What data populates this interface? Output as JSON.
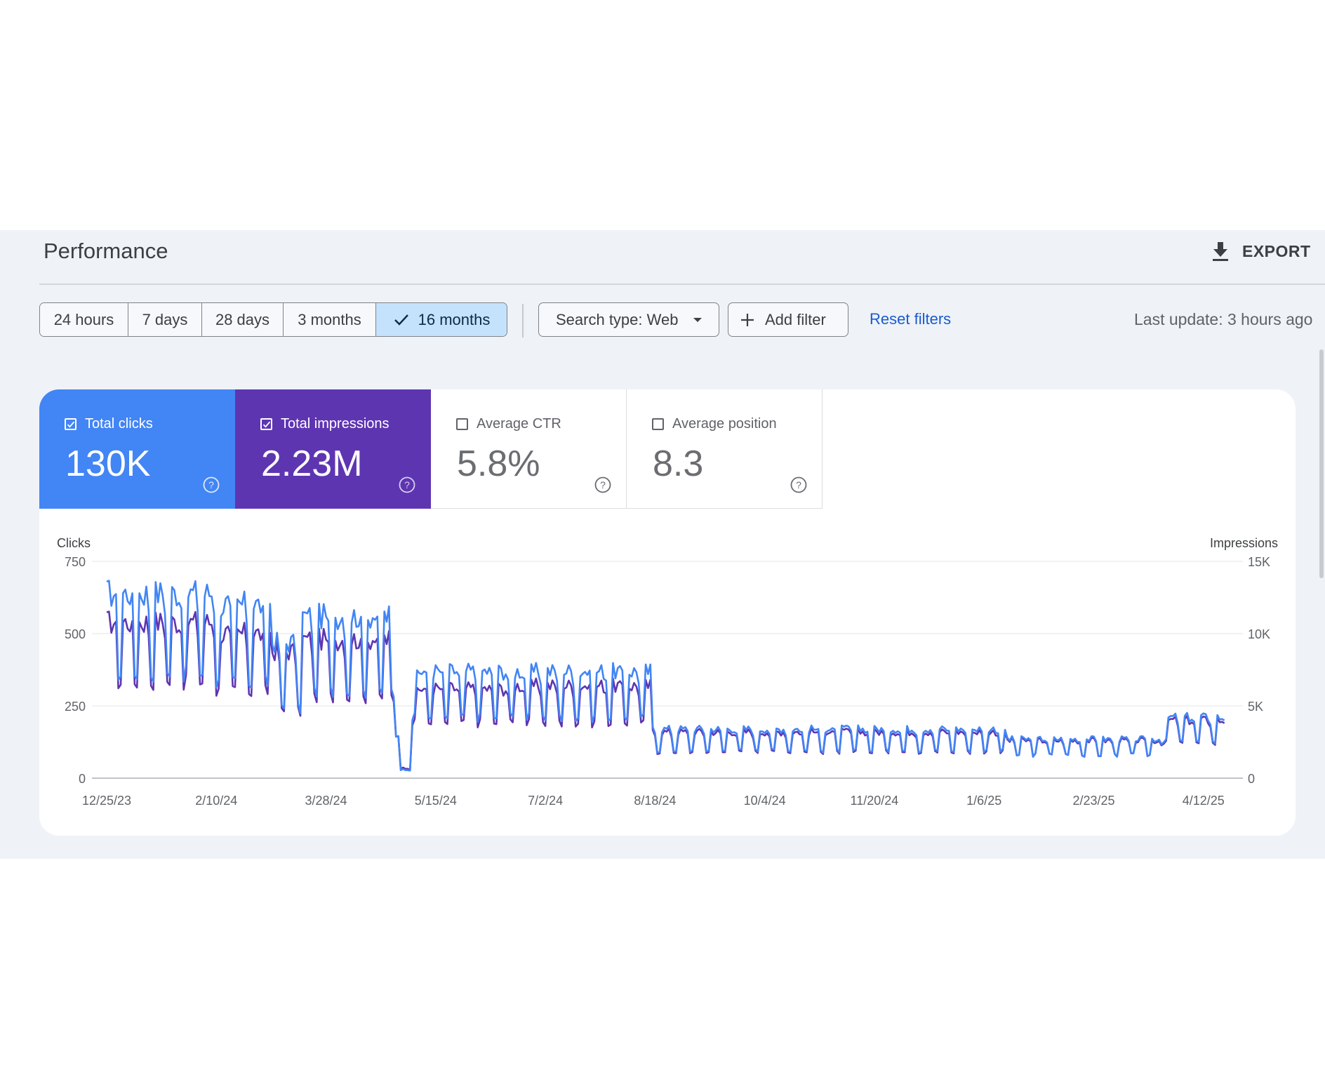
{
  "page": {
    "title": "Performance",
    "export_label": "EXPORT",
    "last_update": "Last update: 3 hours ago"
  },
  "date_ranges": [
    {
      "label": "24 hours",
      "selected": false
    },
    {
      "label": "7 days",
      "selected": false
    },
    {
      "label": "28 days",
      "selected": false
    },
    {
      "label": "3 months",
      "selected": false
    },
    {
      "label": "16 months",
      "selected": true
    }
  ],
  "filters": {
    "search_type": "Search type: Web",
    "add_filter": "Add filter",
    "reset": "Reset filters"
  },
  "metrics": [
    {
      "label": "Total clicks",
      "value": "130K",
      "checked": true,
      "color": "#4285f4"
    },
    {
      "label": "Total impressions",
      "value": "2.23M",
      "checked": true,
      "color": "#5e35b1"
    },
    {
      "label": "Average CTR",
      "value": "5.8%",
      "checked": false
    },
    {
      "label": "Average position",
      "value": "8.3",
      "checked": false
    }
  ],
  "chart_data": {
    "type": "line",
    "left_axis": {
      "title": "Clicks",
      "ticks": [
        "0",
        "250",
        "500",
        "750"
      ],
      "range": [
        0,
        750
      ]
    },
    "right_axis": {
      "title": "Impressions",
      "ticks": [
        "0",
        "5K",
        "10K",
        "15K"
      ],
      "range": [
        0,
        15000
      ]
    },
    "x_ticks": [
      "12/25/23",
      "2/10/24",
      "3/28/24",
      "5/15/24",
      "7/2/24",
      "8/18/24",
      "10/4/24",
      "11/20/24",
      "1/6/25",
      "2/23/25",
      "4/12/25"
    ],
    "x_start": "2023-12-25",
    "days": 480,
    "grid": true,
    "series": [
      {
        "name": "Total clicks",
        "axis": "left",
        "color": "#4285f4",
        "segments": [
          {
            "start_day": 0,
            "end_day": 47,
            "weekday": 640,
            "weekend": 360
          },
          {
            "start_day": 47,
            "end_day": 71,
            "weekday": 600,
            "weekend": 330
          },
          {
            "start_day": 71,
            "end_day": 84,
            "weekday": 470,
            "weekend": 240
          },
          {
            "start_day": 84,
            "end_day": 122,
            "weekday": 560,
            "weekend": 300
          },
          {
            "start_day": 122,
            "end_day": 126,
            "weekday": 300,
            "weekend": 150
          },
          {
            "start_day": 126,
            "end_day": 131,
            "weekday": 30,
            "weekend": 15
          },
          {
            "start_day": 131,
            "end_day": 175,
            "weekday": 370,
            "weekend": 210
          },
          {
            "start_day": 175,
            "end_day": 234,
            "weekday": 370,
            "weekend": 210
          },
          {
            "start_day": 234,
            "end_day": 386,
            "weekday": 170,
            "weekend": 95
          },
          {
            "start_day": 386,
            "end_day": 453,
            "weekday": 135,
            "weekend": 80
          },
          {
            "start_day": 453,
            "end_day": 480,
            "weekday": 210,
            "weekend": 125
          }
        ]
      },
      {
        "name": "Total impressions",
        "axis": "right",
        "color": "#5e35b1",
        "segments": [
          {
            "start_day": 0,
            "end_day": 47,
            "weekday": 10800,
            "weekend": 6600
          },
          {
            "start_day": 47,
            "end_day": 71,
            "weekday": 10000,
            "weekend": 6000
          },
          {
            "start_day": 71,
            "end_day": 84,
            "weekday": 8800,
            "weekend": 4600
          },
          {
            "start_day": 84,
            "end_day": 122,
            "weekday": 9600,
            "weekend": 5600
          },
          {
            "start_day": 122,
            "end_day": 126,
            "weekday": 5600,
            "weekend": 3000
          },
          {
            "start_day": 126,
            "end_day": 131,
            "weekday": 700,
            "weekend": 300
          },
          {
            "start_day": 131,
            "end_day": 175,
            "weekday": 6200,
            "weekend": 3800
          },
          {
            "start_day": 175,
            "end_day": 234,
            "weekday": 6400,
            "weekend": 3800
          },
          {
            "start_day": 234,
            "end_day": 386,
            "weekday": 3200,
            "weekend": 1800
          },
          {
            "start_day": 386,
            "end_day": 453,
            "weekday": 2600,
            "weekend": 1600
          },
          {
            "start_day": 453,
            "end_day": 480,
            "weekday": 4000,
            "weekend": 2400
          }
        ]
      }
    ]
  }
}
